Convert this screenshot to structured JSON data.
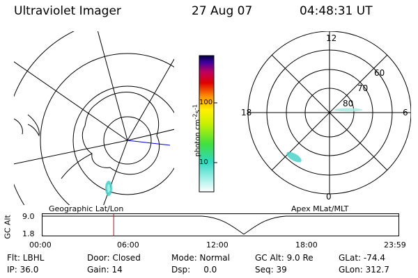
{
  "header": {
    "instrument": "Ultraviolet Imager",
    "date": "27 Aug 07",
    "time": "04:48:31 UT"
  },
  "geo_map": {
    "label": "Geographic Lat/Lon"
  },
  "colorbar": {
    "axis_label_main": "photon cm",
    "axis_label_exp1": "-2",
    "axis_label_s": "s",
    "axis_label_exp2": "-1",
    "ticks": [
      "100",
      "10"
    ]
  },
  "polar_map": {
    "label": "Apex MLat/MLT",
    "mlt_labels": {
      "top": "12",
      "left": "18",
      "right": "6",
      "bottom": "0"
    },
    "mlat_labels": [
      "60",
      "70",
      "80"
    ]
  },
  "altitude_strip": {
    "ylabel": "GC Alt",
    "yticks": [
      "9.0",
      "1.8"
    ],
    "xticks": [
      "00:00",
      "06:00",
      "12:00",
      "18:00",
      "23:59"
    ],
    "current_time_fraction": 0.2
  },
  "info": {
    "row1": [
      "Flt: LBHL",
      "Door: Closed",
      "Mode: Normal",
      "GC Alt: 9.0 Re",
      "GLat: -74.4"
    ],
    "row2": [
      "IP: 36.0",
      "Gain: 14",
      "Dsp:     0.0",
      "Seq: 39",
      "GLon: 312.7"
    ]
  },
  "colors": {
    "marker": "#e00000",
    "meridian": "#0000cc",
    "aurora": "#40d0c8"
  }
}
